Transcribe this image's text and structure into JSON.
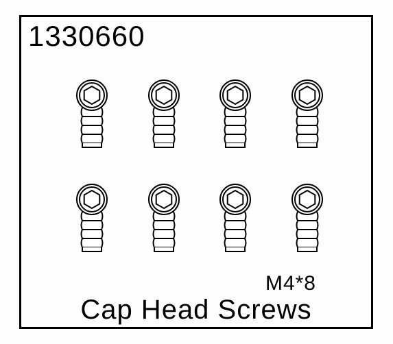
{
  "part_number": "1330660",
  "size": "M4*8",
  "title": "Cap Head Screws",
  "screw": {
    "rows": 2,
    "cols": 4,
    "stroke": "#000000",
    "stroke_width": 2,
    "fill": "#ffffff",
    "head_outer_r": 22,
    "hex_r": 13,
    "thread_segments": 4
  },
  "colors": {
    "background": "#fdfdfd",
    "border": "#000000",
    "text": "#000000"
  }
}
